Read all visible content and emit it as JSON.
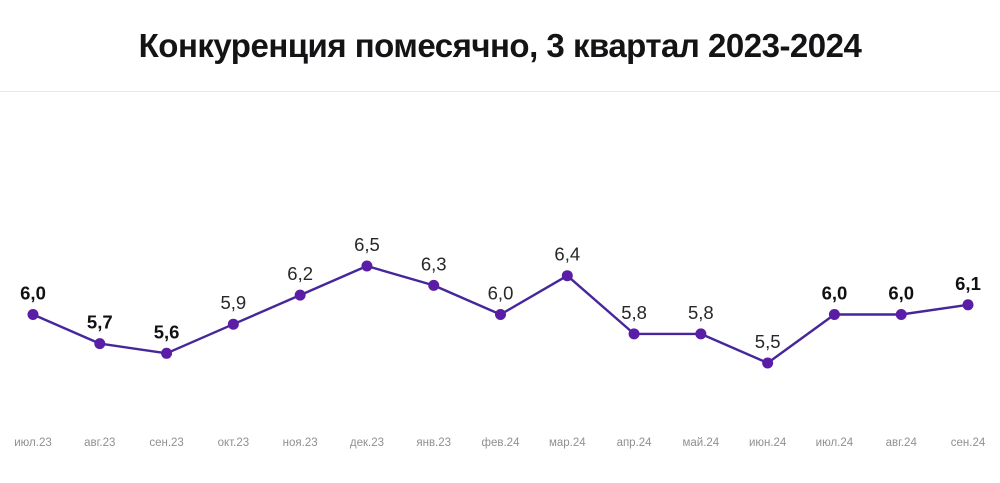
{
  "title": "Конкуренция помесячно, 3 квартал 2023-2024",
  "chart_data": {
    "type": "line",
    "title": "Конкуренция помесячно, 3 квартал 2023-2024",
    "categories": [
      "июл.23",
      "авг.23",
      "сен.23",
      "окт.23",
      "ноя.23",
      "дек.23",
      "янв.23",
      "фев.24",
      "мар.24",
      "апр.24",
      "май.24",
      "июн.24",
      "июл.24",
      "авг.24",
      "сен.24"
    ],
    "values": [
      6.0,
      5.7,
      5.6,
      5.9,
      6.2,
      6.5,
      6.3,
      6.0,
      6.4,
      5.8,
      5.8,
      5.5,
      6.0,
      6.0,
      6.1
    ],
    "value_labels": [
      "6,0",
      "5,7",
      "5,6",
      "5,9",
      "6,2",
      "6,5",
      "6,3",
      "6,0",
      "6,4",
      "5,8",
      "5,8",
      "5,5",
      "6,0",
      "6,0",
      "6,1"
    ],
    "bold_label_indices": [
      0,
      1,
      2,
      12,
      13,
      14
    ],
    "ylim": [
      5.0,
      7.0
    ],
    "grid": false,
    "legend": "none",
    "xlabel": "",
    "ylabel": "",
    "colors": {
      "line": "#45279b",
      "point": "#5a1da6",
      "value_label_bold": "#111113",
      "value_label_regular": "#28282b",
      "axis_label": "#8e9093",
      "divider": "#e8e8e8",
      "title": "#141416"
    }
  }
}
